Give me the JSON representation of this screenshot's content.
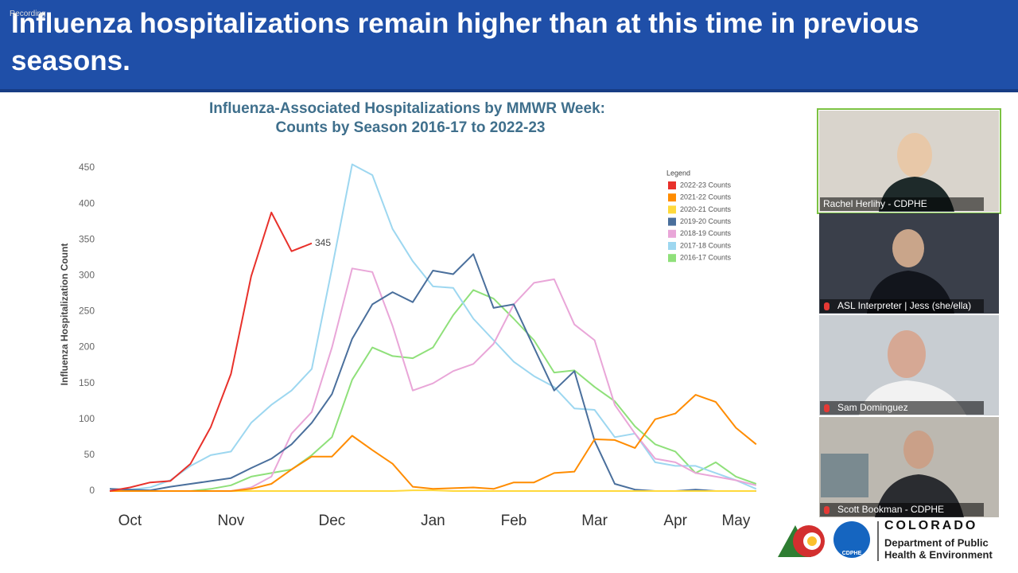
{
  "slide": {
    "heading": "Influenza hospitalizations remain higher than at this time in previous seasons.",
    "recording": "Recording"
  },
  "chart_data": {
    "type": "line",
    "title": "Influenza-Associated Hospitalizations by MMWR Week:",
    "subtitle": "Counts by Season 2016-17 to 2022-23",
    "y_label": "Influenza Hospitalization Count",
    "legend_title": "Legend",
    "legend": "top-right",
    "categories": [
      null,
      "Oct",
      null,
      null,
      null,
      null,
      "Nov",
      null,
      null,
      null,
      null,
      "Dec",
      null,
      null,
      null,
      null,
      "Jan",
      null,
      null,
      null,
      "Feb",
      null,
      null,
      null,
      "Mar",
      null,
      null,
      null,
      "Apr",
      null,
      null,
      "May",
      null
    ],
    "ylim": [
      -7,
      460
    ],
    "yticks": [
      0,
      50,
      100,
      150,
      200,
      250,
      300,
      350,
      400,
      450
    ],
    "series": [
      {
        "name": "2022-23 Counts",
        "color": "#e8312b",
        "values": [
          0,
          5,
          12,
          14,
          38,
          89,
          163,
          299,
          388,
          334,
          345,
          null,
          null,
          null,
          null,
          null,
          null,
          null,
          null,
          null,
          null,
          null,
          null,
          null,
          null,
          null,
          null,
          null,
          null,
          null,
          null,
          null,
          null
        ]
      },
      {
        "name": "2021-22 Counts",
        "color": "#ff8c00",
        "values": [
          0,
          0,
          0,
          0,
          0,
          0,
          0,
          3,
          10,
          30,
          48,
          48,
          77,
          57,
          38,
          6,
          3,
          4,
          5,
          3,
          12,
          12,
          25,
          27,
          72,
          71,
          60,
          100,
          108,
          134,
          124,
          88,
          65
        ]
      },
      {
        "name": "2020-21 Counts",
        "color": "#ffd93b",
        "values": [
          0,
          0,
          0,
          0,
          0,
          0,
          0,
          0,
          0,
          0,
          0,
          0,
          0,
          0,
          0,
          1,
          1,
          0,
          0,
          0,
          0,
          0,
          0,
          0,
          0,
          0,
          0,
          0,
          0,
          0,
          0,
          0,
          0
        ]
      },
      {
        "name": "2019-20 Counts",
        "color": "#4a6f9c",
        "values": [
          3,
          2,
          1,
          6,
          10,
          14,
          18,
          32,
          45,
          65,
          95,
          135,
          212,
          260,
          277,
          263,
          307,
          302,
          330,
          255,
          260,
          200,
          140,
          167,
          70,
          10,
          2,
          0,
          0,
          2,
          0,
          0,
          0
        ]
      },
      {
        "name": "2018-19 Counts",
        "color": "#e9a6d8",
        "values": [
          0,
          0,
          0,
          0,
          0,
          0,
          0,
          5,
          20,
          80,
          110,
          200,
          310,
          305,
          230,
          140,
          150,
          167,
          177,
          205,
          260,
          290,
          295,
          232,
          210,
          120,
          80,
          45,
          40,
          25,
          20,
          15,
          8
        ]
      },
      {
        "name": "2017-18 Counts",
        "color": "#9dd7f0",
        "values": [
          0,
          2,
          5,
          15,
          35,
          50,
          55,
          95,
          120,
          140,
          170,
          310,
          455,
          440,
          365,
          320,
          285,
          283,
          240,
          210,
          180,
          160,
          145,
          115,
          113,
          75,
          80,
          40,
          35,
          35,
          25,
          15,
          3
        ]
      },
      {
        "name": "2016-17 Counts",
        "color": "#8fe07a",
        "values": [
          0,
          0,
          0,
          0,
          0,
          3,
          8,
          20,
          25,
          30,
          50,
          75,
          155,
          200,
          188,
          185,
          200,
          245,
          280,
          268,
          240,
          210,
          165,
          168,
          145,
          125,
          90,
          65,
          55,
          25,
          40,
          20,
          10
        ]
      }
    ]
  },
  "participants": [
    "Rachel Herlihy - CDPHE",
    "ASL Interpreter | Jess (she/ella)",
    "Sam Dominguez",
    "Scott Bookman - CDPHE"
  ],
  "logo": {
    "badge": "CDPHE",
    "name": "COLORADO",
    "line1": "Department of Public",
    "line2": "Health & Environment"
  }
}
